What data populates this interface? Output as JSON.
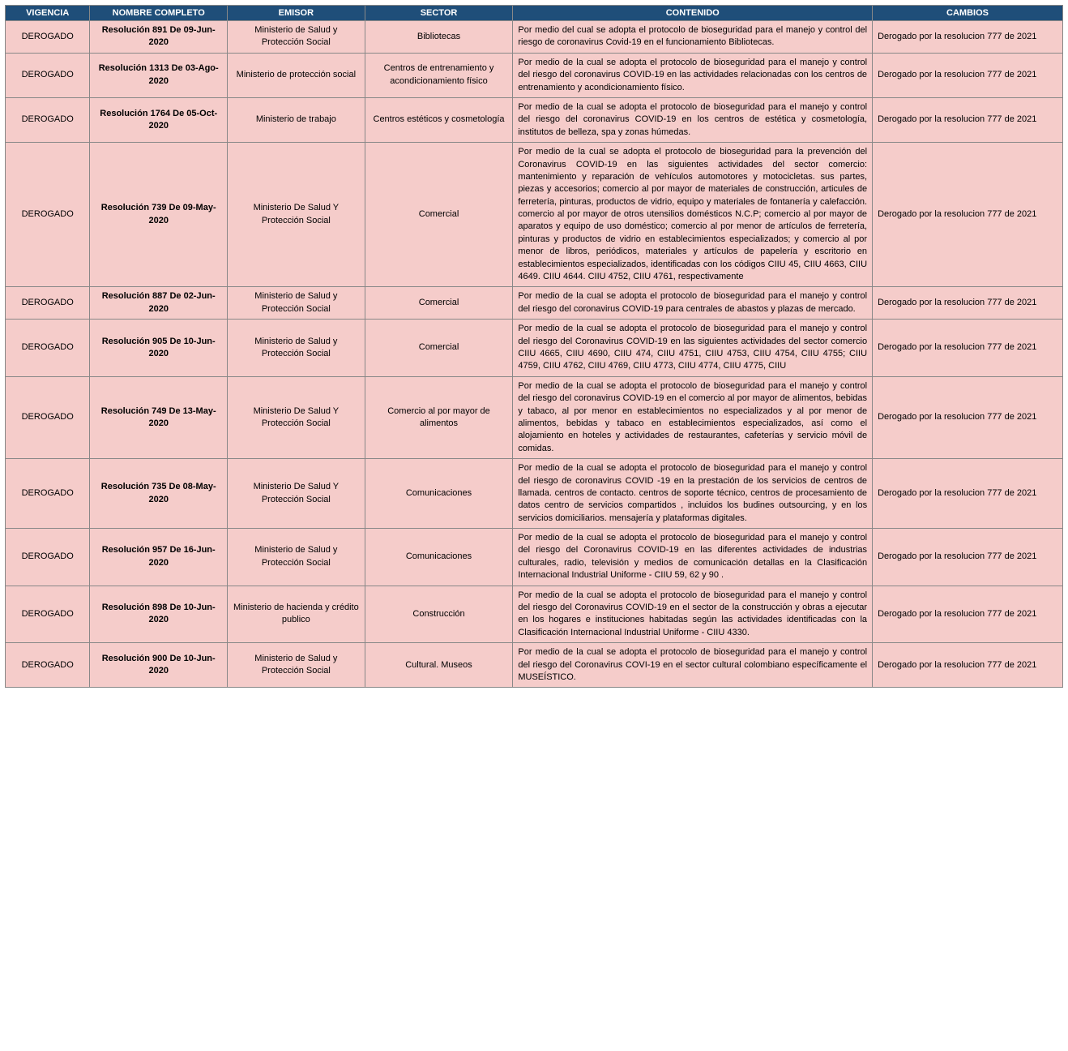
{
  "table": {
    "header_bg": "#1f4e79",
    "header_fg": "#ffffff",
    "row_bg": "#f5ccca",
    "border_color": "#888888",
    "font_family": "Arial",
    "base_font_size_pt": 8,
    "columns": [
      {
        "key": "vigencia",
        "label": "VIGENCIA",
        "width_pct": 8,
        "align": "center"
      },
      {
        "key": "nombre",
        "label": "NOMBRE COMPLETO",
        "width_pct": 13,
        "align": "center",
        "bold": true
      },
      {
        "key": "emisor",
        "label": "EMISOR",
        "width_pct": 13,
        "align": "center"
      },
      {
        "key": "sector",
        "label": "SECTOR",
        "width_pct": 14,
        "align": "center"
      },
      {
        "key": "contenido",
        "label": "CONTENIDO",
        "width_pct": 34,
        "align": "justify"
      },
      {
        "key": "cambios",
        "label": "CAMBIOS",
        "width_pct": 18,
        "align": "left"
      }
    ],
    "rows": [
      {
        "vigencia": "DEROGADO",
        "nombre": "Resolución 891 De 09-Jun-2020",
        "emisor": "Ministerio de Salud y Protección Social",
        "sector": "Bibliotecas",
        "contenido": "Por medio del cual se adopta el protocolo de bioseguridad para el manejo y control del riesgo de coronavirus Covid-19 en el funcionamiento Bibliotecas.",
        "cambios": "Derogado por la resolucion 777 de 2021"
      },
      {
        "vigencia": "DEROGADO",
        "nombre": "Resolución 1313 De 03-Ago-2020",
        "emisor": "Ministerio de protección social",
        "sector": "Centros de entrenamiento y acondicionamiento físico",
        "contenido": "Por medio de la cual se adopta el protocolo de bioseguridad para el manejo y control del riesgo del coronavirus COVID-19 en las actividades relacionadas con los centros de entrenamiento y acondicionamiento físico.",
        "cambios": "Derogado por la resolucion 777 de 2021"
      },
      {
        "vigencia": "DEROGADO",
        "nombre": "Resolución 1764 De 05-Oct-2020",
        "emisor": "Ministerio de trabajo",
        "sector": "Centros estéticos y cosmetología",
        "contenido": "Por medio de la cual se adopta el protocolo de bioseguridad para el manejo y control del  riesgo del coronavirus COVID-19 en los centros de estética y cosmetología, institutos de belleza, spa y zonas húmedas.",
        "cambios": "Derogado por la resolucion 777 de 2021"
      },
      {
        "vigencia": "DEROGADO",
        "nombre": "Resolución 739 De 09-May-2020",
        "emisor": "Ministerio De Salud Y Protección Social",
        "sector": "Comercial",
        "contenido": "Por medio de la cual se adopta el protocolo de bioseguridad para la prevención del  Coronavirus COVID-19 en las siguientes actividades del sector comercio: mantenimiento y reparación de vehículos automotores y motocicletas. sus partes, piezas y accesorios; comercio al por mayor de materiales de construcción, articules de ferretería, pinturas, productos de vidrio, equipo y materiales de fontanería y calefacción. comercio al por mayor de otros utensilios domésticos N.C.P; comercio al por mayor de aparatos y equipo de uso doméstico; comercio al por menor de artículos de ferretería, pinturas y productos de vidrio en establecimientos especializados; y comercio al por menor de libros, periódicos, materiales y artículos de papelería y escritorio en establecimientos especializados, identificadas con los códigos CIIU 45, CIIU 4663, CIIU 4649. CIIU 4644. CIIU 4752, CIIU 4761, respectivamente",
        "cambios": "Derogado por la resolucion 777 de 2021"
      },
      {
        "vigencia": "DEROGADO",
        "nombre": "Resolución 887 De 02-Jun-2020",
        "emisor": "Ministerio de Salud y Protección Social",
        "sector": "Comercial",
        "contenido": "Por medio de la cual se adopta el protocolo de bioseguridad para el manejo y control del riesgo del coronavirus COVID-19 para centrales de abastos y plazas de mercado.",
        "cambios": "Derogado por la resolucion 777 de 2021"
      },
      {
        "vigencia": "DEROGADO",
        "nombre": "Resolución 905 De 10-Jun-2020",
        "emisor": "Ministerio de Salud y Protección Social",
        "sector": "Comercial",
        "contenido": "Por medio de la cual se adopta el protocolo de bioseguridad para el manejo y control del riesgo del Coronavirus COVID-19 en las siguientes actividades del sector comercio CIIU 4665, CIIU 4690, CIIU 474, CIIU 4751, CIIU 4753, CIIU 4754, CIIU 4755; CIIU 4759, CIIU 4762, CIIU 4769, CIIU 4773, CIIU 4774, CIIU 4775, CIIU",
        "cambios": "Derogado por la resolucion 777 de 2021"
      },
      {
        "vigencia": "DEROGADO",
        "nombre": "Resolución 749 De 13-May-2020",
        "emisor": "Ministerio De Salud Y Protección Social",
        "sector": "Comercio al por mayor de alimentos",
        "contenido": "Por medio de la cual se adopta el protocolo de bioseguridad para el manejo y control del riesgo del coronavirus COVID-19 en el comercio al por mayor de alimentos, bebidas y tabaco, al por menor en establecimientos no especializados y al por menor de alimentos, bebidas y tabaco en establecimientos especializados, así como el alojamiento en hoteles y actividades de restaurantes, cafeterías y servicio móvil de comidas.",
        "cambios": "Derogado por la resolucion 777 de 2021"
      },
      {
        "vigencia": "DEROGADO",
        "nombre": "Resolución 735 De 08-May-2020",
        "emisor": "Ministerio De Salud Y Protección Social",
        "sector": "Comunicaciones",
        "contenido": "Por medio de la cual se adopta el protocolo de bioseguridad para el manejo y control del riesgo de coronavirus COVID -19 en la prestación de los servicios de centros de llamada. centros de contacto. centros de soporte técnico, centros de procesamiento de datos centro de servicios compartidos , incluidos los budines outsourcing, y en los servicios domiciliarios. mensajería y plataformas digitales.",
        "cambios": "Derogado por la resolucion 777 de 2021"
      },
      {
        "vigencia": "DEROGADO",
        "nombre": "Resolución 957 De 16-Jun-2020",
        "emisor": "Ministerio de Salud y Protección Social",
        "sector": "Comunicaciones",
        "contenido": "Por medio de la cual se adopta el protocolo de bioseguridad para el manejo y control del riesgo del Coronavirus COVID-19 en las diferentes actividades de industrias culturales, radio, televisión y medios de comunicación detallas en la Clasificación Internacional Industrial Uniforme - CIIU 59, 62 y 90  .",
        "cambios": "Derogado por la resolucion 777 de 2021"
      },
      {
        "vigencia": "DEROGADO",
        "nombre": "Resolución 898 De 10-Jun-2020",
        "emisor": "Ministerio de hacienda y crédito publico",
        "sector": "Construcción",
        "contenido": "Por medio de la cual se adopta el protocolo de bioseguridad para el manejo y control del riesgo del Coronavirus COVID-19 en el sector de la construcción y obras a ejecutar en los hogares e instituciones habitadas según las actividades identificadas con la  Clasificación Internacional Industrial Uniforme - CIIU 4330.",
        "cambios": "Derogado por la resolucion 777 de 2021"
      },
      {
        "vigencia": "DEROGADO",
        "nombre": "Resolución 900 De 10-Jun-2020",
        "emisor": "Ministerio de Salud y Protección Social",
        "sector": "Cultural. Museos",
        "contenido": "Por medio de la cual se adopta el protocolo de bioseguridad para el manejo y control del riesgo del Coronavirus COVI-19 en el sector cultural colombiano específicamente el MUSEÍSTICO.",
        "cambios": "Derogado por la resolucion 777 de 2021"
      }
    ]
  }
}
